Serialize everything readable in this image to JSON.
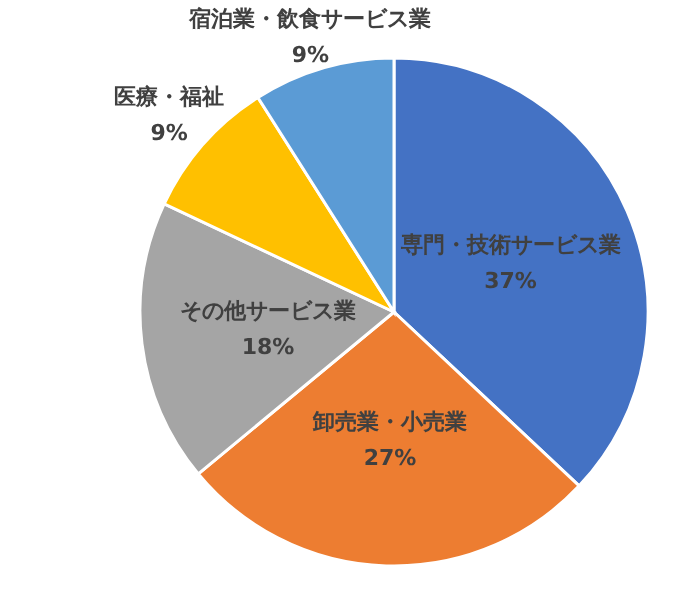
{
  "chart_data": {
    "type": "pie",
    "categories": [
      "専門・技術サービス業",
      "卸売業・小売業",
      "その他サービス業",
      "医療・福祉",
      "宿泊業・飲食サービス業"
    ],
    "values": [
      37,
      27,
      18,
      9,
      9
    ],
    "value_labels": [
      "37%",
      "27%",
      "18%",
      "9%",
      "9%"
    ],
    "colors": [
      "#4472c4",
      "#ed7d31",
      "#a5a5a5",
      "#ffc000",
      "#5b9bd5"
    ]
  }
}
